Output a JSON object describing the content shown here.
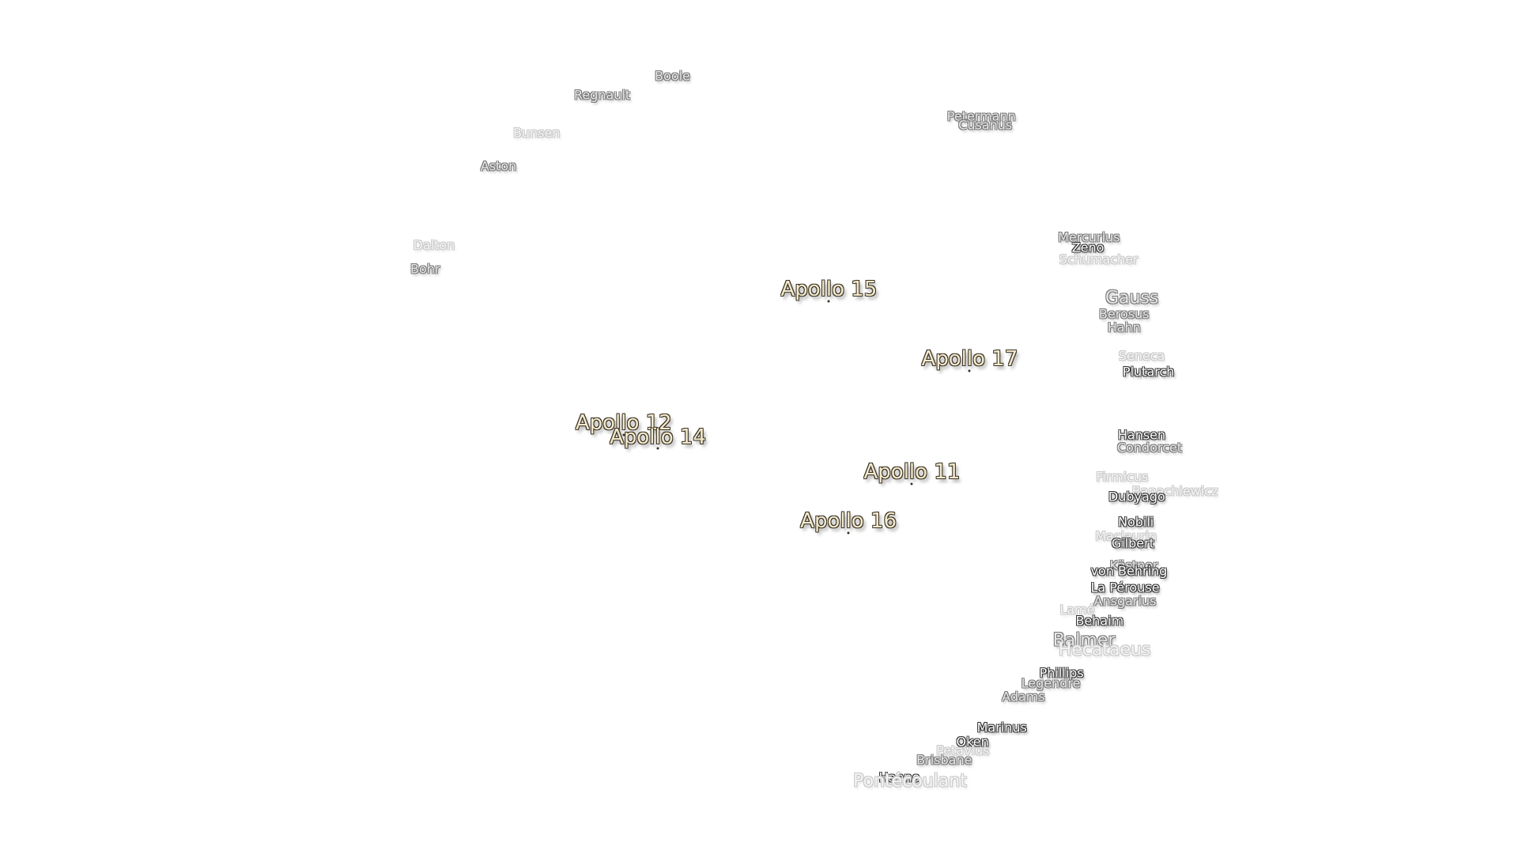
{
  "features": [
    "Boole",
    "Regnault",
    "Bunsen",
    "Aston",
    "Dalton",
    "Bohr",
    "Petermann",
    "Cusanus",
    "Mercurius",
    "Zeno",
    "Schumacher",
    "Gauss",
    "Berosus",
    "Hahn",
    "Seneca",
    "Plutarch",
    "Hansen",
    "Condorcet",
    "Firmicus",
    "Banachiewicz",
    "Dubyago",
    "Nobili",
    "Maclaurin",
    "Gilbert",
    "Kästner",
    "von Behring",
    "La Pérouse",
    "Ansgarius",
    "Lamé",
    "Behaim",
    "Balmer",
    "Hecataeus",
    "Phillips",
    "Legendre",
    "Adams",
    "Marinus",
    "Oken",
    "Petavius",
    "Brisbane",
    "Hanno",
    "Pontécoulant"
  ],
  "landing_sites": [
    "Apollo 15",
    "Apollo 17",
    "Apollo 12",
    "Apollo 14",
    "Apollo 11",
    "Apollo 16"
  ]
}
